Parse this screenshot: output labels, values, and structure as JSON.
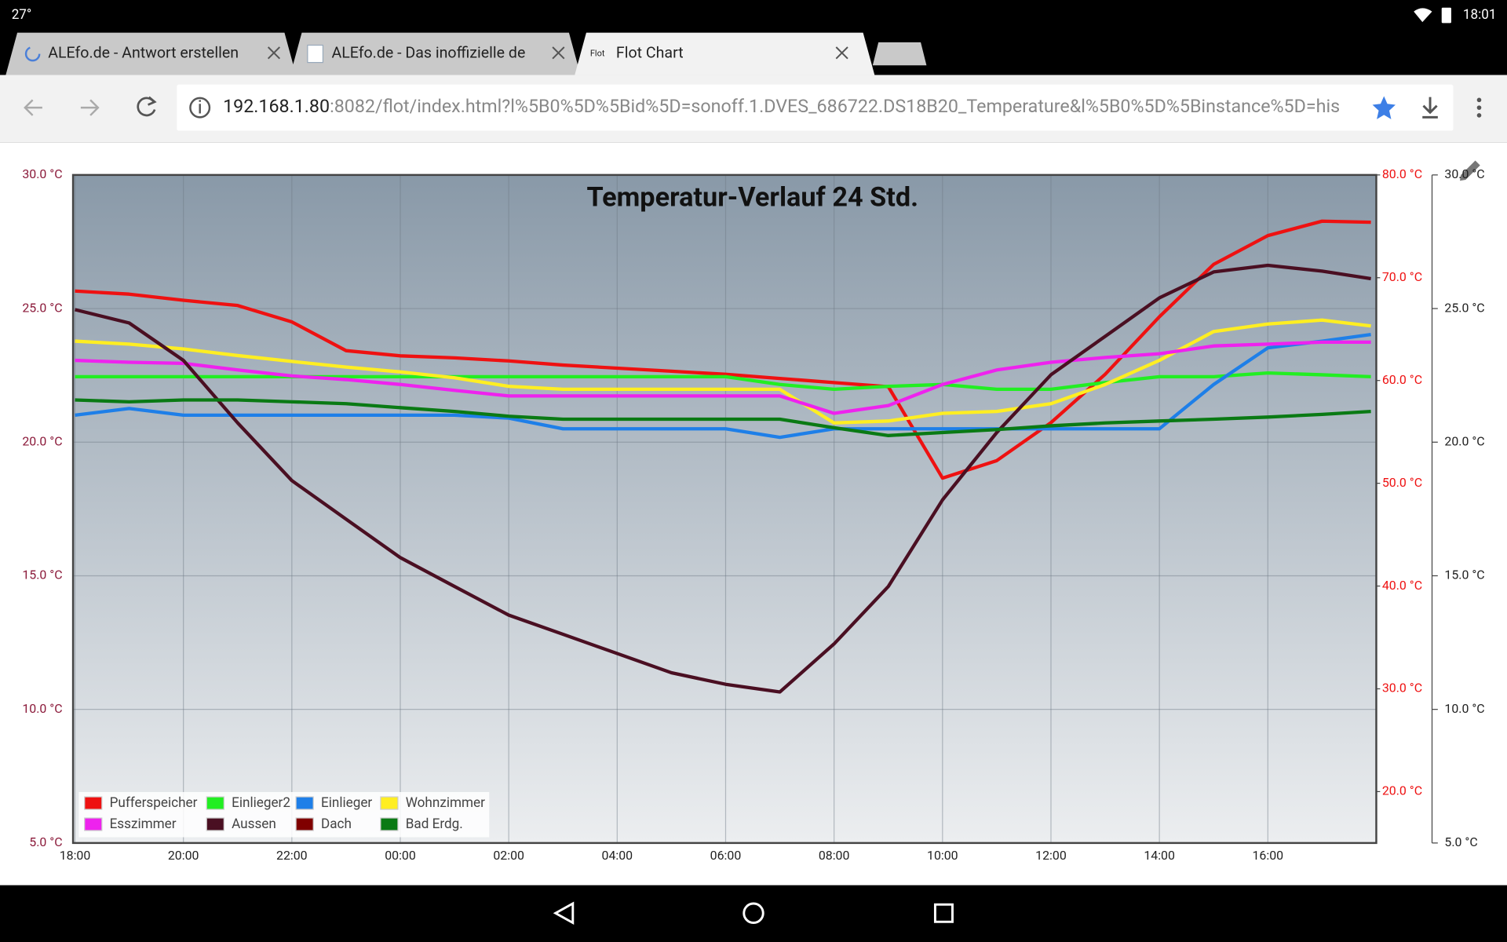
{
  "status_bar": {
    "temperature": "27°",
    "time": "18:01"
  },
  "tabs": [
    {
      "title": "ALEfo.de - Antwort erstellen"
    },
    {
      "title": "ALEfo.de - Das inoffizielle de"
    },
    {
      "favicon": "Flot",
      "title": "Flot Chart"
    }
  ],
  "address_bar": {
    "host": "192.168.1.80",
    "rest": ":8082/flot/index.html?l%5B0%5D%5Bid%5D=sonoff.1.DVES_686722.DS18B20_Temperature&l%5B0%5D%5Binstance%5D=his"
  },
  "chart_data": {
    "type": "line",
    "title": "Temperatur-Verlauf 24 Std.",
    "x": [
      0,
      1,
      2,
      3,
      4,
      5,
      6,
      7,
      8,
      9,
      10,
      11,
      12,
      13,
      14,
      15,
      16,
      17,
      18,
      19,
      20,
      21,
      22,
      23,
      23.9
    ],
    "xlim": [
      0,
      24
    ],
    "xticks": [
      {
        "value": 0,
        "label": "18:00"
      },
      {
        "value": 2,
        "label": "20:00"
      },
      {
        "value": 4,
        "label": "22:00"
      },
      {
        "value": 6,
        "label": "00:00"
      },
      {
        "value": 8,
        "label": "02:00"
      },
      {
        "value": 10,
        "label": "04:00"
      },
      {
        "value": 12,
        "label": "06:00"
      },
      {
        "value": 14,
        "label": "08:00"
      },
      {
        "value": 16,
        "label": "10:00"
      },
      {
        "value": 18,
        "label": "12:00"
      },
      {
        "value": 20,
        "label": "14:00"
      },
      {
        "value": 22,
        "label": "16:00"
      }
    ],
    "ylim": [
      5,
      30
    ],
    "yticks": [
      {
        "value": 5,
        "label": "5.0 °C"
      },
      {
        "value": 10,
        "label": "10.0 °C"
      },
      {
        "value": 15,
        "label": "15.0 °C"
      },
      {
        "value": 20,
        "label": "20.0 °C"
      },
      {
        "value": 25,
        "label": "25.0 °C"
      },
      {
        "value": 30,
        "label": "30.0 °C"
      }
    ],
    "y2lim": [
      15,
      80
    ],
    "y2ticks": [
      {
        "value": 20,
        "label": "20.0 °C"
      },
      {
        "value": 30,
        "label": "30.0 °C"
      },
      {
        "value": 40,
        "label": "40.0 °C"
      },
      {
        "value": 50,
        "label": "50.0 °C"
      },
      {
        "value": 60,
        "label": "60.0 °C"
      },
      {
        "value": 70,
        "label": "70.0 °C"
      },
      {
        "value": 80,
        "label": "80.0 °C"
      }
    ],
    "y3lim": [
      5,
      30
    ],
    "y3ticks": [
      {
        "value": 5,
        "label": "5.0 °C"
      },
      {
        "value": 10,
        "label": "10.0 °C"
      },
      {
        "value": 15,
        "label": "15.0 °C"
      },
      {
        "value": 20,
        "label": "20.0 °C"
      },
      {
        "value": 25,
        "label": "25.0 °C"
      },
      {
        "value": 30,
        "label": "30.0 °C"
      }
    ],
    "grid": true,
    "legend": "lower left",
    "series": [
      {
        "name": "Pufferspeicher",
        "color": "#ee1111",
        "axis": "y2",
        "values": [
          68.7,
          68.4,
          67.8,
          67.3,
          65.7,
          62.9,
          62.4,
          62.2,
          61.9,
          61.5,
          61.2,
          60.9,
          60.6,
          60.2,
          59.8,
          59.4,
          50.5,
          52.2,
          55.9,
          60.6,
          66.2,
          71.3,
          74.1,
          75.5,
          75.4
        ]
      },
      {
        "name": "Einlieger2",
        "color": "#22ee22",
        "values": [
          22.45,
          22.45,
          22.45,
          22.45,
          22.45,
          22.45,
          22.45,
          22.45,
          22.45,
          22.45,
          22.45,
          22.45,
          22.45,
          22.16,
          21.98,
          22.09,
          22.16,
          21.98,
          21.98,
          22.23,
          22.45,
          22.45,
          22.59,
          22.52,
          22.45
        ]
      },
      {
        "name": "Einlieger",
        "color": "#1e7fe8",
        "values": [
          21.01,
          21.26,
          21.01,
          21.01,
          21.01,
          21.01,
          21.01,
          21.01,
          20.9,
          20.5,
          20.5,
          20.5,
          20.5,
          20.18,
          20.5,
          20.5,
          20.5,
          20.5,
          20.5,
          20.5,
          20.5,
          22.16,
          23.53,
          23.78,
          24.03
        ]
      },
      {
        "name": "Wohnzimmer",
        "color": "#ffee22",
        "values": [
          23.78,
          23.67,
          23.49,
          23.24,
          23.02,
          22.81,
          22.63,
          22.41,
          22.09,
          21.98,
          21.98,
          21.98,
          21.98,
          21.98,
          20.72,
          20.79,
          21.08,
          21.15,
          21.44,
          22.16,
          23.06,
          24.14,
          24.42,
          24.57,
          24.35
        ]
      },
      {
        "name": "Esszimmer",
        "color": "#ee22ee",
        "values": [
          23.06,
          22.99,
          22.95,
          22.7,
          22.48,
          22.34,
          22.16,
          21.94,
          21.73,
          21.73,
          21.73,
          21.73,
          21.73,
          21.73,
          21.08,
          21.37,
          22.16,
          22.7,
          22.99,
          23.17,
          23.31,
          23.6,
          23.67,
          23.74,
          23.74
        ]
      },
      {
        "name": "Aussen",
        "color": "#4a0f22",
        "values": [
          24.96,
          24.46,
          23.06,
          20.72,
          18.56,
          17.12,
          15.68,
          14.6,
          13.53,
          12.81,
          12.09,
          11.37,
          10.94,
          10.65,
          12.45,
          14.6,
          17.84,
          20.36,
          22.52,
          23.96,
          25.4,
          26.37,
          26.62,
          26.4,
          26.12
        ]
      },
      {
        "name": "Dach",
        "color": "#800000",
        "values": [
          null,
          null,
          null,
          null,
          null,
          null,
          null,
          null,
          null,
          null,
          null,
          null,
          null,
          null,
          null,
          null,
          null,
          null,
          null,
          null,
          null,
          null,
          null,
          null,
          null
        ]
      },
      {
        "name": "Bad Erdg.",
        "color": "#0a7a14",
        "values": [
          21.58,
          21.51,
          21.58,
          21.58,
          21.51,
          21.44,
          21.29,
          21.15,
          20.97,
          20.86,
          20.86,
          20.86,
          20.86,
          20.86,
          20.54,
          20.25,
          20.36,
          20.47,
          20.61,
          20.72,
          20.79,
          20.86,
          20.94,
          21.04,
          21.15
        ]
      }
    ]
  }
}
